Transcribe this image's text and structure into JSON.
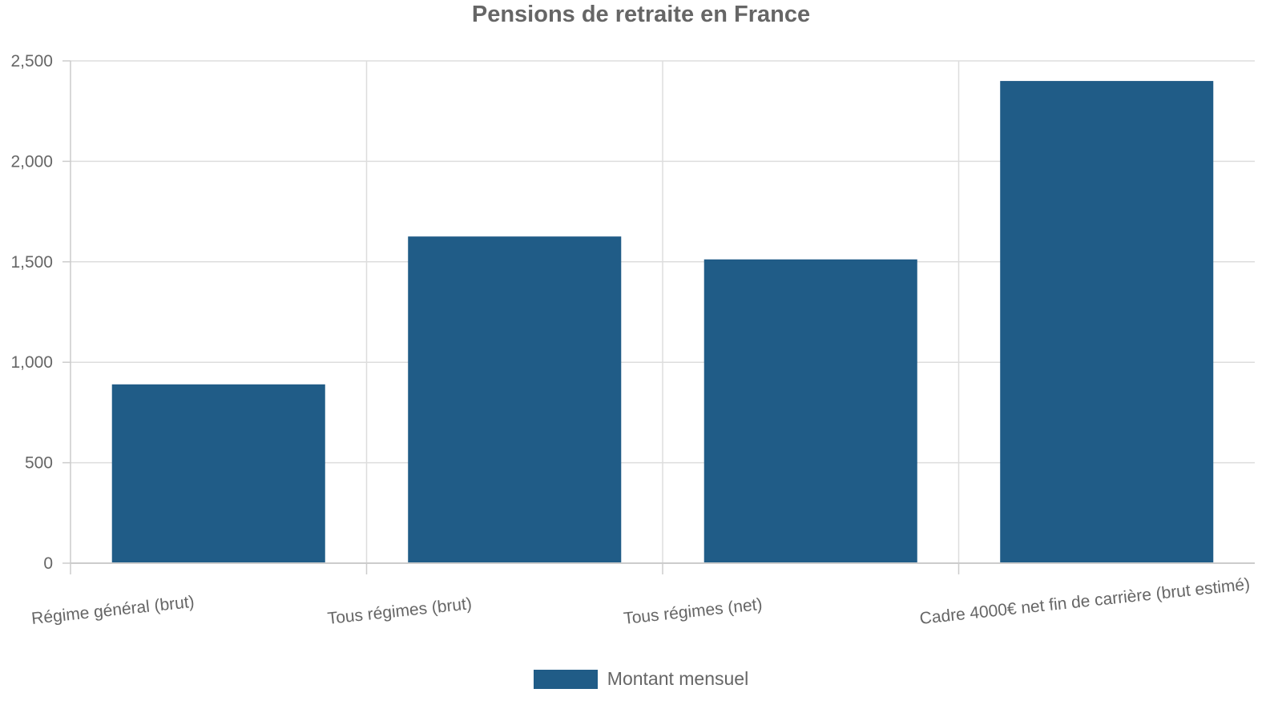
{
  "chart_data": {
    "type": "bar",
    "title": "Pensions de retraite en France",
    "categories": [
      "Régime général (brut)",
      "Tous régimes (brut)",
      "Tous régimes (net)",
      "Cadre 4000€ net fin de carrière (brut estimé)"
    ],
    "series": [
      {
        "name": "Montant mensuel",
        "values": [
          890,
          1626,
          1512,
          2400
        ],
        "color": "#205c87"
      }
    ],
    "ylim": [
      0,
      2500
    ],
    "yticks": [
      0,
      500,
      1000,
      1500,
      2000,
      2500
    ],
    "ytick_labels": [
      "0",
      "500",
      "1,000",
      "1,500",
      "2,000",
      "2,500"
    ],
    "grid": true,
    "legend_position": "bottom"
  }
}
